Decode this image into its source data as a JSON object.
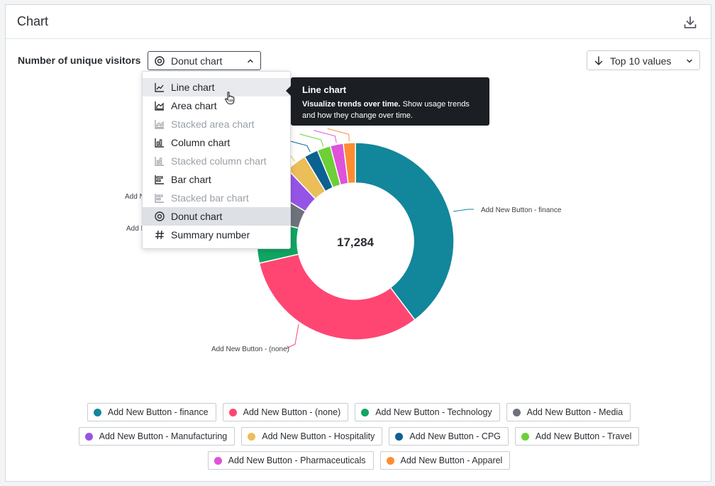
{
  "panel": {
    "title": "Chart",
    "download_icon": "download-icon"
  },
  "controls": {
    "metric_label": "Number of unique visitors",
    "chart_type_selected": "Donut chart",
    "top_values_label": "Top 10 values"
  },
  "menu": {
    "items": [
      {
        "label": "Line chart",
        "icon": "line-chart-icon",
        "state": "hover"
      },
      {
        "label": "Area chart",
        "icon": "area-chart-icon",
        "state": "normal"
      },
      {
        "label": "Stacked area chart",
        "icon": "stacked-area-chart-icon",
        "state": "disabled"
      },
      {
        "label": "Column chart",
        "icon": "column-chart-icon",
        "state": "normal"
      },
      {
        "label": "Stacked column chart",
        "icon": "stacked-column-chart-icon",
        "state": "disabled"
      },
      {
        "label": "Bar chart",
        "icon": "bar-chart-icon",
        "state": "normal"
      },
      {
        "label": "Stacked bar chart",
        "icon": "stacked-bar-chart-icon",
        "state": "disabled"
      },
      {
        "label": "Donut chart",
        "icon": "donut-chart-icon",
        "state": "selected"
      },
      {
        "label": "Summary number",
        "icon": "hash-icon",
        "state": "normal"
      }
    ]
  },
  "tooltip": {
    "title": "Line chart",
    "body_bold": "Visualize trends over time.",
    "body_rest": "Show usage trends and how they change over time."
  },
  "chart_data": {
    "type": "pie",
    "variant": "donut",
    "total_label": "17,284",
    "slices": [
      {
        "name": "Add New Button - finance",
        "value": 6860,
        "color": "#12869b"
      },
      {
        "name": "Add New Button - (none)",
        "value": 5485,
        "color": "#ff4672"
      },
      {
        "name": "Add New Button - Technology",
        "value": 1240,
        "color": "#10a562"
      },
      {
        "name": "Add New Button - Media",
        "value": 860,
        "color": "#6e727a"
      },
      {
        "name": "Add New Button - Manufacturing",
        "value": 760,
        "color": "#9554e6"
      },
      {
        "name": "Add New Button - Hospitality",
        "value": 590,
        "color": "#ebbe58"
      },
      {
        "name": "Add New Button - CPG",
        "value": 400,
        "color": "#0b6192"
      },
      {
        "name": "Add New Button - Travel",
        "value": 380,
        "color": "#6dd036"
      },
      {
        "name": "Add New Button - Pharmaceuticals",
        "value": 370,
        "color": "#e052d9"
      },
      {
        "name": "Add New Button - Apparel",
        "value": 339,
        "color": "#ff8c31"
      }
    ],
    "visible_slice_labels": [
      {
        "text": "Add New Button - finance",
        "slice": 0
      },
      {
        "text": "Add New Button - (none)",
        "slice": 1
      },
      {
        "text": "Add Ne",
        "slice": 2
      },
      {
        "text": "Add N",
        "slice": 3
      },
      {
        "text": "A",
        "slice": 4
      }
    ]
  }
}
